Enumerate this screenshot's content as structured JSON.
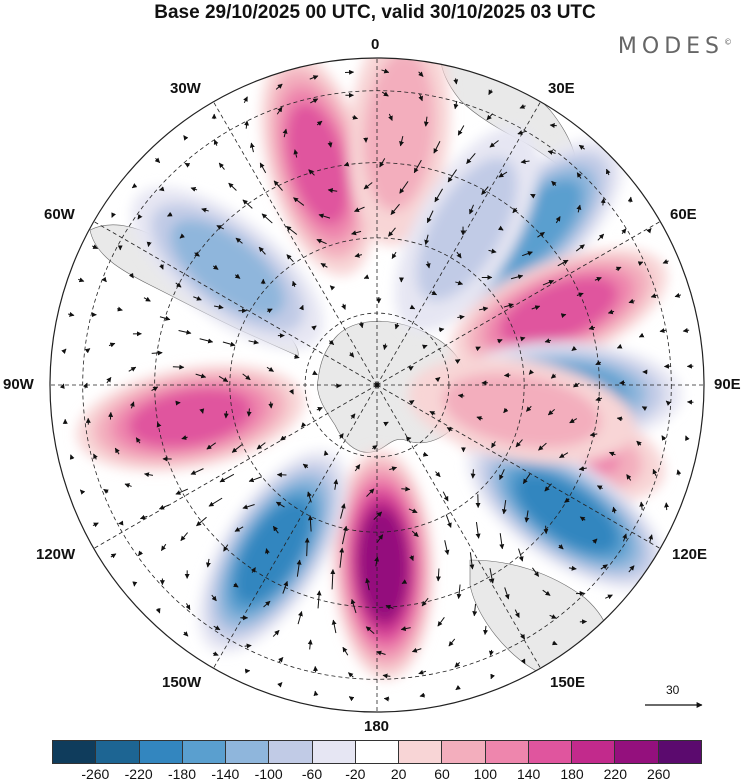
{
  "title": "Base 29/10/2025 00 UTC, valid 30/10/2025 03 UTC",
  "brand": "MODES",
  "brand_mark": "©",
  "longitude_labels": {
    "lon_0": "0",
    "lon_30e": "30E",
    "lon_60e": "60E",
    "lon_90e": "90E",
    "lon_120e": "120E",
    "lon_150e": "150E",
    "lon_180": "180",
    "lon_150w": "150W",
    "lon_120w": "120W",
    "lon_90w": "90W",
    "lon_60w": "60W",
    "lon_30w": "30W"
  },
  "wind_reference": {
    "value": "30"
  },
  "colorbar": {
    "colors": [
      "#0f3c5c",
      "#1d6593",
      "#3386bf",
      "#5a9fcf",
      "#8fb6dc",
      "#c1cbe6",
      "#e6e6f3",
      "#ffffff",
      "#f8d5d6",
      "#f3aebd",
      "#ee86ad",
      "#e0559e",
      "#c22a8c",
      "#94107d",
      "#5b0a6e"
    ],
    "ticks": [
      "-260",
      "-220",
      "-180",
      "-140",
      "-100",
      "-60",
      "-20",
      "20",
      "60",
      "100",
      "140",
      "180",
      "220",
      "260"
    ]
  },
  "anomaly_centers": [
    {
      "lon": -15,
      "colat": 0.7,
      "value": 140
    },
    {
      "lon": 5,
      "colat": 0.78,
      "value": 80
    },
    {
      "lon": 45,
      "colat": 0.68,
      "value": -160
    },
    {
      "lon": 68,
      "colat": 0.6,
      "value": 150
    },
    {
      "lon": 92,
      "colat": 0.58,
      "value": -160
    },
    {
      "lon": 108,
      "colat": 0.57,
      "value": 100
    },
    {
      "lon": 124,
      "colat": 0.7,
      "value": -200
    },
    {
      "lon": 100,
      "colat": 0.45,
      "value": 70
    },
    {
      "lon": 178,
      "colat": 0.55,
      "value": 240
    },
    {
      "lon": -148,
      "colat": 0.6,
      "value": -200
    },
    {
      "lon": -100,
      "colat": 0.58,
      "value": 160
    },
    {
      "lon": -52,
      "colat": 0.58,
      "value": -120
    },
    {
      "lon": 30,
      "colat": 0.55,
      "value": -60
    }
  ]
}
